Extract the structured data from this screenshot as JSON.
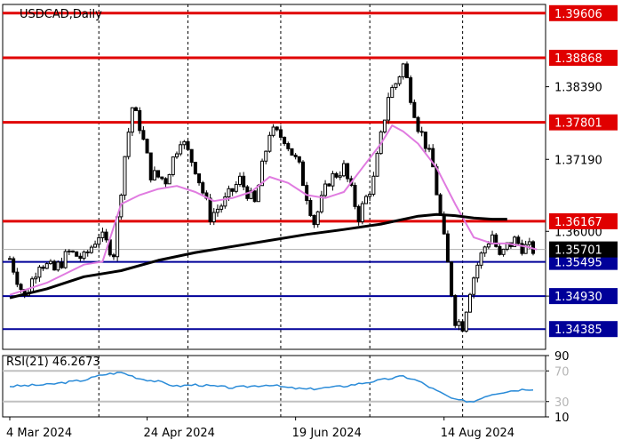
{
  "chart_data": {
    "type": "candlestick",
    "title": "USDCAD,Daily",
    "timeframe": "Daily",
    "colors": {
      "background": "#ffffff",
      "candle": "#000000",
      "ma_fast": "#e07be0",
      "ma_slow": "#000000",
      "resistance_line": "#e00000",
      "support_line": "#000099",
      "label_red_bg": "#e00000",
      "label_blue_bg": "#000099",
      "label_current_bg": "#000000",
      "rsi_line": "#2a8bd8",
      "grid": "#000000"
    },
    "price_axis": {
      "range": [
        1.3405,
        1.3975
      ],
      "tick_labels": [
        "1.38390",
        "1.37190",
        "1.36000",
        "1.34930"
      ],
      "tick_values": [
        1.3839,
        1.3719,
        1.36,
        1.3493
      ]
    },
    "x_axis": {
      "tick_labels": [
        "4 Mar 2024",
        "24 Apr 2024",
        "19 Jun 2024",
        "14 Aug 2024"
      ],
      "tick_index": [
        0,
        37,
        77,
        117
      ],
      "vertical_grid_index": [
        24,
        48,
        73,
        97,
        122
      ]
    },
    "levels": [
      {
        "label": "1.39606",
        "value": 1.39606,
        "kind": "resistance"
      },
      {
        "label": "1.38868",
        "value": 1.38868,
        "kind": "resistance"
      },
      {
        "label": "1.37801",
        "value": 1.37801,
        "kind": "resistance"
      },
      {
        "label": "1.36167",
        "value": 1.36167,
        "kind": "resistance"
      },
      {
        "label": "1.35495",
        "value": 1.35495,
        "kind": "support"
      },
      {
        "label": "1.34930",
        "value": 1.3493,
        "kind": "support"
      },
      {
        "label": "1.34385",
        "value": 1.34385,
        "kind": "support"
      }
    ],
    "current_price": {
      "label": "1.35701",
      "value": 1.35701
    },
    "series": [
      {
        "key": "fast_ma",
        "x": [
          0,
          5,
          10,
          15,
          20,
          25,
          30,
          35,
          40,
          45,
          50,
          55,
          60,
          65,
          70,
          75,
          80,
          85,
          90,
          95,
          100,
          103,
          106,
          110,
          115,
          120,
          125,
          130,
          134,
          139,
          142
        ],
        "y": [
          1.3495,
          1.3505,
          1.3515,
          1.353,
          1.3545,
          1.355,
          1.3645,
          1.366,
          1.367,
          1.3675,
          1.3665,
          1.365,
          1.3655,
          1.3665,
          1.369,
          1.368,
          1.366,
          1.3655,
          1.3665,
          1.3705,
          1.3745,
          1.3775,
          1.3765,
          1.3745,
          1.3705,
          1.3645,
          1.359,
          1.358,
          1.358,
          1.3575,
          1.357
        ]
      },
      {
        "key": "slow_ma",
        "x": [
          0,
          10,
          20,
          30,
          40,
          50,
          60,
          70,
          80,
          90,
          100,
          110,
          115,
          120,
          125,
          130,
          134
        ],
        "y": [
          1.349,
          1.3505,
          1.3525,
          1.3535,
          1.3552,
          1.3565,
          1.3575,
          1.3585,
          1.3595,
          1.3603,
          1.3612,
          1.3625,
          1.3628,
          1.3626,
          1.3622,
          1.362,
          1.362
        ]
      }
    ],
    "candles": {
      "count": 142,
      "anchor_index": [
        0,
        4,
        8,
        12,
        16,
        20,
        24,
        28,
        31,
        33,
        35,
        38,
        42,
        46,
        50,
        54,
        58,
        62,
        66,
        70,
        74,
        78,
        82,
        86,
        90,
        94,
        98,
        100,
        102,
        104,
        106,
        108,
        110,
        112,
        114,
        116,
        118,
        120,
        122,
        124,
        126,
        128,
        130,
        132,
        134,
        136,
        138,
        141
      ],
      "anchor_close": [
        1.3555,
        1.349,
        1.355,
        1.3535,
        1.3565,
        1.3555,
        1.3595,
        1.3565,
        1.3725,
        1.3805,
        1.3775,
        1.3695,
        1.3685,
        1.3755,
        1.3705,
        1.3625,
        1.365,
        1.3685,
        1.3645,
        1.3765,
        1.3755,
        1.3705,
        1.3615,
        1.3685,
        1.3705,
        1.3625,
        1.3685,
        1.3755,
        1.3825,
        1.3845,
        1.3875,
        1.3825,
        1.3775,
        1.3745,
        1.3705,
        1.3625,
        1.3545,
        1.3455,
        1.3445,
        1.3505,
        1.3545,
        1.3575,
        1.3595,
        1.3555,
        1.3575,
        1.3585,
        1.3575,
        1.357
      ],
      "noise": 0.0012,
      "wick": 0.0008
    },
    "rsi": {
      "label": "RSI(21) 46.2673",
      "period": 21,
      "value": 46.2673,
      "range": [
        10,
        90
      ],
      "tick_labels": [
        "90",
        "70",
        "30",
        "10"
      ],
      "tick_values": [
        90,
        70,
        30,
        10
      ],
      "x": [
        0,
        10,
        20,
        25,
        30,
        35,
        40,
        45,
        50,
        60,
        70,
        75,
        80,
        90,
        100,
        106,
        110,
        115,
        120,
        125,
        127,
        130,
        135,
        139
      ],
      "y": [
        50,
        52,
        58,
        65,
        68,
        60,
        56,
        50,
        52,
        48,
        52,
        48,
        46,
        50,
        58,
        63,
        57,
        44,
        32,
        30,
        35,
        40,
        44,
        46.2673
      ]
    }
  }
}
